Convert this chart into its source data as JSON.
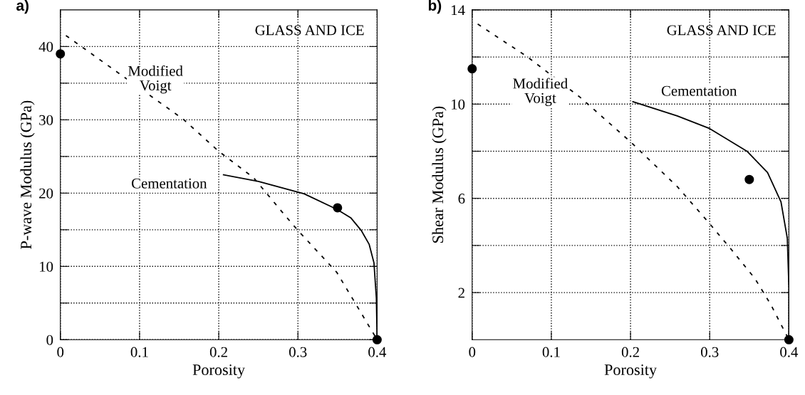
{
  "chart_data": [
    {
      "type": "line",
      "title": "a)",
      "xlabel": "Porosity",
      "ylabel": "P-wave Modulus (GPa)",
      "xlim": [
        0,
        0.4
      ],
      "ylim": [
        0,
        45
      ],
      "xticks": [
        0,
        0.1,
        0.2,
        0.3,
        0.4
      ],
      "yticks": [
        0,
        {
          "value": 5,
          "label": null
        },
        10,
        {
          "value": 15,
          "label": null
        },
        20,
        {
          "value": 25,
          "label": null
        },
        30,
        {
          "value": 35,
          "label": null
        },
        40
      ],
      "grid": true,
      "series": [
        {
          "name": "Modified\nVoigt",
          "line_style": "dashed",
          "color": "#000000",
          "x": [
            0.007,
            0.155,
            0.2,
            0.244,
            0.281,
            0.3,
            0.349,
            0.4
          ],
          "values": [
            41.5,
            30.1,
            25.7,
            22.1,
            17.3,
            14.9,
            9.2,
            0
          ]
        },
        {
          "name": "Cementation",
          "line_style": "solid",
          "color": "#000000",
          "x": [
            0.206,
            0.25,
            0.308,
            0.349,
            0.367,
            0.38,
            0.39,
            0.396,
            0.399,
            0.4
          ],
          "values": [
            22.5,
            21.6,
            19.9,
            17.8,
            16.6,
            14.9,
            13.0,
            10.5,
            5.7,
            0
          ]
        },
        {
          "type": "scatter",
          "marker": "circle",
          "color": "#000000",
          "x": [
            0,
            0.35,
            0.4
          ],
          "values": [
            39,
            18,
            0
          ]
        }
      ],
      "annotations": [
        "GLASS AND ICE"
      ]
    },
    {
      "type": "line",
      "title": "b)",
      "xlabel": "Porosity",
      "ylabel": "Shear Modulus (GPa)",
      "xlim": [
        0,
        0.4
      ],
      "ylim": [
        0,
        14
      ],
      "xticks": [
        0,
        0.1,
        0.2,
        0.3,
        0.4
      ],
      "yticks": [
        2,
        {
          "value": 4,
          "label": null
        },
        6,
        {
          "value": 8,
          "label": null
        },
        10,
        {
          "value": 12,
          "label": null
        },
        14
      ],
      "grid": true,
      "series": [
        {
          "name": "Modified\nVoigt",
          "line_style": "dashed",
          "color": "#000000",
          "x": [
            0.007,
            0.07,
            0.136,
            0.2,
            0.259,
            0.298,
            0.328,
            0.357,
            0.377,
            0.4
          ],
          "values": [
            13.4,
            12.0,
            10.3,
            8.4,
            6.5,
            5.0,
            3.8,
            2.6,
            1.5,
            0
          ]
        },
        {
          "name": "Cementation",
          "line_style": "solid",
          "color": "#000000",
          "x": [
            0.203,
            0.259,
            0.3,
            0.347,
            0.373,
            0.39,
            0.398,
            0.4,
            0.4
          ],
          "values": [
            10.1,
            9.5,
            8.96,
            8.0,
            7.1,
            5.85,
            4.3,
            2.2,
            0
          ]
        },
        {
          "type": "scatter",
          "marker": "circle",
          "color": "#000000",
          "x": [
            0,
            0.35,
            0.4
          ],
          "values": [
            11.5,
            6.8,
            0
          ]
        }
      ],
      "annotations": [
        "GLASS AND ICE"
      ]
    }
  ]
}
